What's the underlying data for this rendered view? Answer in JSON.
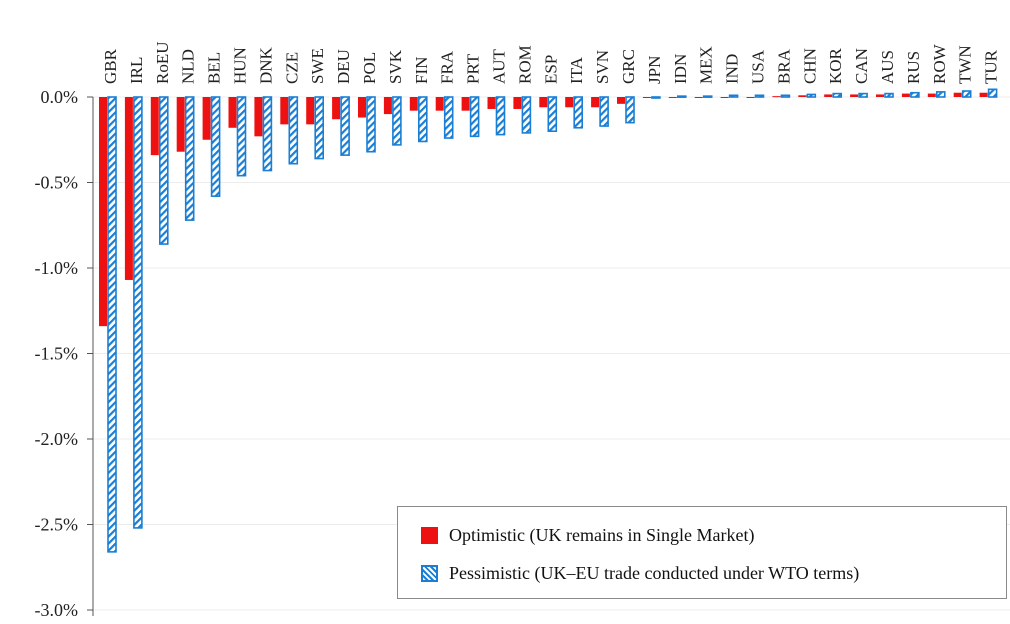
{
  "chart_data": {
    "type": "bar",
    "categories": [
      "GBR",
      "IRL",
      "RoEU",
      "NLD",
      "BEL",
      "HUN",
      "DNK",
      "CZE",
      "SWE",
      "DEU",
      "POL",
      "SVK",
      "FIN",
      "FRA",
      "PRT",
      "AUT",
      "ROM",
      "ESP",
      "ITA",
      "SVN",
      "GRC",
      "JPN",
      "IDN",
      "MEX",
      "IND",
      "USA",
      "BRA",
      "CHN",
      "KOR",
      "CAN",
      "AUS",
      "RUS",
      "ROW",
      "TWN",
      "TUR"
    ],
    "series": [
      {
        "name": "Optimistic (UK remains in Single Market)",
        "color": "#ee1111",
        "pattern": "solid",
        "values": [
          -1.34,
          -1.07,
          -0.34,
          -0.32,
          -0.25,
          -0.18,
          -0.23,
          -0.16,
          -0.16,
          -0.13,
          -0.12,
          -0.1,
          -0.08,
          -0.08,
          -0.08,
          -0.07,
          -0.07,
          -0.06,
          -0.06,
          -0.06,
          -0.04,
          -0.005,
          -0.005,
          -0.005,
          -0.005,
          -0.005,
          0.005,
          0.01,
          0.015,
          0.015,
          0.015,
          0.02,
          0.02,
          0.025,
          0.025
        ]
      },
      {
        "name": "Pessimistic (UK–EU trade conducted under WTO terms)",
        "color": "#1a7fd4",
        "pattern": "hatched",
        "values": [
          -2.66,
          -2.52,
          -0.86,
          -0.72,
          -0.58,
          -0.46,
          -0.43,
          -0.39,
          -0.36,
          -0.34,
          -0.32,
          -0.28,
          -0.26,
          -0.24,
          -0.23,
          -0.22,
          -0.21,
          -0.2,
          -0.18,
          -0.17,
          -0.15,
          -0.005,
          0.005,
          0.005,
          0.01,
          0.01,
          0.01,
          0.015,
          0.02,
          0.02,
          0.02,
          0.025,
          0.03,
          0.035,
          0.045
        ]
      }
    ],
    "y_ticks": [
      "0.0%",
      "-0.5%",
      "-1.0%",
      "-1.5%",
      "-2.0%",
      "-2.5%",
      "-3.0%"
    ],
    "ylim": [
      -3.0,
      0.05
    ],
    "grid": true,
    "legend_position": "bottom-right"
  }
}
